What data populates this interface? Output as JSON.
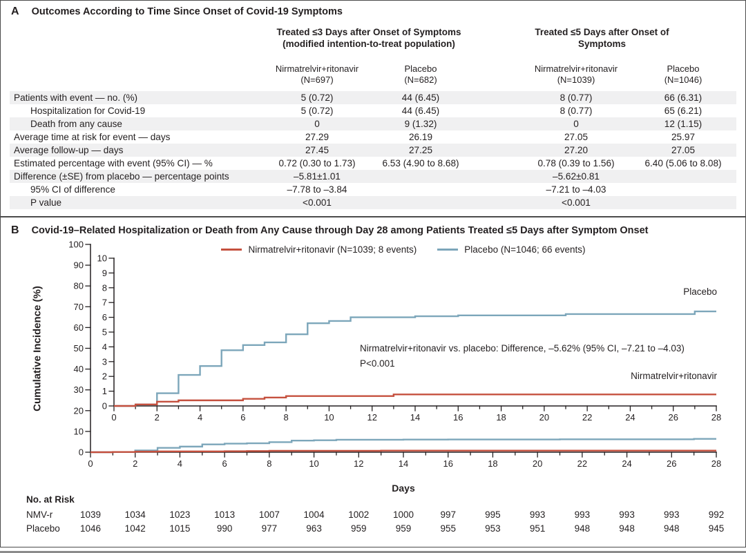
{
  "colors": {
    "nmvr_red": "#c5503e",
    "placebo_blue": "#7ca6ba",
    "text": "#231f20",
    "axis": "#231f20",
    "row_stripe": "#f0f0f1",
    "border": "#4a4a4a",
    "bottom_rule": "#8b8b8b"
  },
  "panel_a": {
    "label": "A",
    "title": "Outcomes According to Time Since Onset of Covid-19 Symptoms",
    "groups": [
      {
        "title": "Treated ≤3 Days after Onset of Symptoms",
        "subtitle": "(modified intention-to-treat population)"
      },
      {
        "title": "Treated ≤5 Days after Onset of Symptoms",
        "subtitle": ""
      }
    ],
    "columns": [
      {
        "drug": "Nirmatrelvir+ritonavir",
        "n": "(N=697)"
      },
      {
        "drug": "Placebo",
        "n": "(N=682)"
      },
      {
        "drug": "Nirmatrelvir+ritonavir",
        "n": "(N=1039)"
      },
      {
        "drug": "Placebo",
        "n": "(N=1046)"
      }
    ],
    "rows": [
      {
        "label": "Patients with event — no. (%)",
        "indent": 0,
        "shaded": true,
        "values": [
          "5 (0.72)",
          "44 (6.45)",
          "8 (0.77)",
          "66 (6.31)"
        ]
      },
      {
        "label": "Hospitalization for Covid-19",
        "indent": 1,
        "shaded": false,
        "values": [
          "5 (0.72)",
          "44 (6.45)",
          "8 (0.77)",
          "65 (6.21)"
        ]
      },
      {
        "label": "Death from any cause",
        "indent": 1,
        "shaded": true,
        "values": [
          "0",
          "9 (1.32)",
          "0",
          "12 (1.15)"
        ]
      },
      {
        "label": "Average time at risk for event — days",
        "indent": 0,
        "shaded": false,
        "values": [
          "27.29",
          "26.19",
          "27.05",
          "25.97"
        ]
      },
      {
        "label": "Average follow-up — days",
        "indent": 0,
        "shaded": true,
        "values": [
          "27.45",
          "27.25",
          "27.20",
          "27.05"
        ]
      },
      {
        "label": "Estimated percentage with event (95% CI) — %",
        "indent": 0,
        "shaded": false,
        "values": [
          "0.72 (0.30 to 1.73)",
          "6.53 (4.90 to 8.68)",
          "0.78 (0.39 to 1.56)",
          "6.40 (5.06 to 8.08)"
        ]
      },
      {
        "label": "Difference (±SE) from placebo — percentage points",
        "indent": 0,
        "shaded": true,
        "values": [
          "–5.81±1.01",
          "",
          "–5.62±0.81",
          ""
        ]
      },
      {
        "label": "95% CI of difference",
        "indent": 1,
        "shaded": false,
        "values": [
          "–7.78 to –3.84",
          "",
          "–7.21 to –4.03",
          ""
        ]
      },
      {
        "label": "P value",
        "indent": 1,
        "shaded": true,
        "values": [
          "<0.001",
          "",
          "<0.001",
          ""
        ]
      }
    ]
  },
  "panel_b": {
    "label": "B",
    "title": "Covid-19–Related Hospitalization or Death from Any Cause through Day 28 among Patients Treated ≤5 Days after Symptom Onset"
  },
  "chart_data": {
    "type": "line",
    "subtype": "kaplan-meier cumulative incidence step curves with inset expanded axis",
    "title": "Covid-19–Related Hospitalization or Death from Any Cause through Day 28 among Patients Treated ≤5 Days after Symptom Onset",
    "xlabel": "Days",
    "ylabel": "Cumulative Incidence (%)",
    "xlim": [
      0,
      28
    ],
    "x_major_ticks": [
      0,
      2,
      4,
      6,
      8,
      10,
      12,
      14,
      16,
      18,
      20,
      22,
      24,
      26,
      28
    ],
    "x_minor_ticks_every": 1,
    "grid": false,
    "outer_axis": {
      "ylim": [
        0,
        100
      ],
      "y_ticks": [
        0,
        10,
        20,
        30,
        40,
        50,
        60,
        70,
        80,
        90,
        100
      ]
    },
    "inset_axis": {
      "ylim": [
        0,
        10
      ],
      "y_ticks": [
        0,
        1,
        2,
        3,
        4,
        5,
        6,
        7,
        8,
        9,
        10
      ]
    },
    "series": [
      {
        "name": "Placebo",
        "legend_label": "Placebo (N=1046; 66 events)",
        "color_key": "placebo_blue",
        "events": 66,
        "n": 1046,
        "final_value": 6.4,
        "steps": [
          [
            0,
            0
          ],
          [
            1,
            0.1
          ],
          [
            2,
            0.86
          ],
          [
            3,
            2.1
          ],
          [
            4,
            2.7
          ],
          [
            5,
            3.77
          ],
          [
            6,
            4.12
          ],
          [
            7,
            4.3
          ],
          [
            8,
            4.85
          ],
          [
            9,
            5.6
          ],
          [
            10,
            5.75
          ],
          [
            11,
            6.0
          ],
          [
            14,
            6.07
          ],
          [
            16,
            6.13
          ],
          [
            21,
            6.22
          ],
          [
            27,
            6.4
          ]
        ]
      },
      {
        "name": "Nirmatrelvir+ritonavir",
        "legend_label": "Nirmatrelvir+ritonavir (N=1039; 8 events)",
        "color_key": "nmvr_red",
        "events": 8,
        "n": 1039,
        "final_value": 0.78,
        "steps": [
          [
            0,
            0
          ],
          [
            1,
            0.1
          ],
          [
            2,
            0.29
          ],
          [
            3,
            0.38
          ],
          [
            6,
            0.48
          ],
          [
            7,
            0.57
          ],
          [
            8,
            0.67
          ],
          [
            13,
            0.78
          ]
        ]
      }
    ],
    "legend": [
      {
        "label": "Nirmatrelvir+ritonavir (N=1039; 8 events)",
        "color_key": "nmvr_red"
      },
      {
        "label": "Placebo (N=1046; 66 events)",
        "color_key": "placebo_blue"
      }
    ],
    "legend_position": "top center inside plot",
    "annotation": {
      "line1": "Nirmatrelvir+ritonavir vs. placebo: Difference, –5.62% (95% CI, –7.21 to –4.03)",
      "line2": "P<0.001"
    },
    "curve_labels": {
      "placebo": "Placebo",
      "nmvr": "Nirmatrelvir+ritonavir"
    },
    "risk_table": {
      "title": "No. at Risk",
      "days": [
        0,
        2,
        4,
        6,
        8,
        10,
        12,
        14,
        16,
        18,
        20,
        22,
        24,
        26,
        28
      ],
      "rows": [
        {
          "name": "NMV-r",
          "values": [
            1039,
            1034,
            1023,
            1013,
            1007,
            1004,
            1002,
            1000,
            997,
            995,
            993,
            993,
            993,
            993,
            992
          ]
        },
        {
          "name": "Placebo",
          "values": [
            1046,
            1042,
            1015,
            990,
            977,
            963,
            959,
            959,
            955,
            953,
            951,
            948,
            948,
            948,
            945
          ]
        }
      ]
    }
  }
}
